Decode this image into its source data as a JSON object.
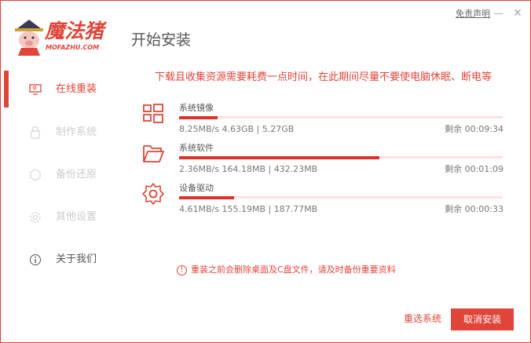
{
  "window": {
    "disclaimer": "免责声明",
    "minimize": "—",
    "close": "✕"
  },
  "logo": {
    "name": "魔法猪",
    "domain": "MOFAZHU.COM"
  },
  "header": {
    "title": "开始安装"
  },
  "sidebar": {
    "items": [
      {
        "label": "在线重装",
        "icon": "monitor-icon",
        "active": true
      },
      {
        "label": "制作系统",
        "icon": "usb-icon"
      },
      {
        "label": "备份还原",
        "icon": "backup-icon"
      },
      {
        "label": "其他设置",
        "icon": "gear-icon"
      },
      {
        "label": "关于我们",
        "icon": "info-icon"
      }
    ]
  },
  "main": {
    "notice": "下载且收集资源需要耗费一点时间，在此期间尽量不要使电脑休眠、断电等",
    "downloads": [
      {
        "name": "系统镜像",
        "icon": "windows-icon",
        "stats": "8.25MB/s 4.63GB | 5.27GB",
        "remaining": "剩余 00:09:34",
        "progress_percent": 12
      },
      {
        "name": "系统软件",
        "icon": "folder-icon",
        "stats": "2.36MB/s 164.18MB | 432.23MB",
        "remaining": "剩余 00:01:09",
        "progress_percent": 62
      },
      {
        "name": "设备驱动",
        "icon": "gear-icon",
        "stats": "4.61MB/s 155.19MB | 187.77MB",
        "remaining": "剩余 00:00:33",
        "progress_percent": 17
      }
    ],
    "warning": "重装之前会删除桌面及C盘文件，请及时备份重要资料",
    "warning_icon": "!"
  },
  "footer": {
    "reselect": "重选系统",
    "cancel": "取消安装"
  },
  "colors": {
    "accent": "#e0453a",
    "track": "#fde1df"
  }
}
